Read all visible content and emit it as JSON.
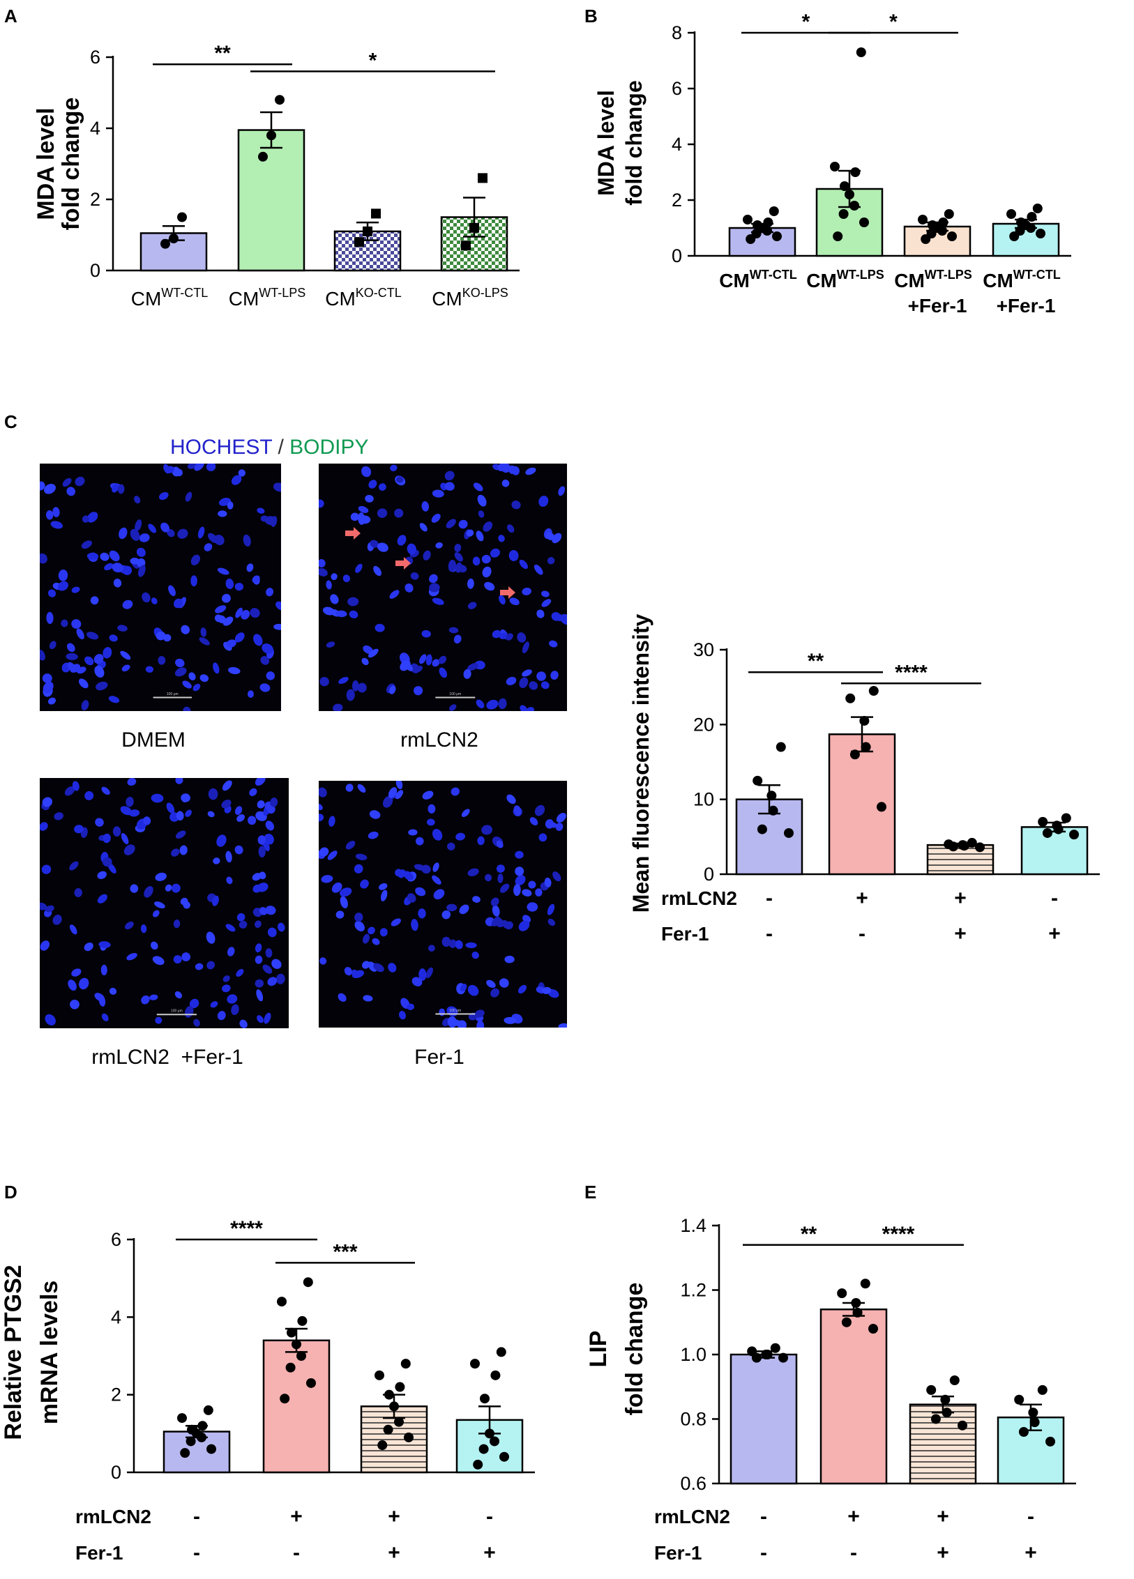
{
  "panels": {
    "A": "A",
    "B": "B",
    "C": "C",
    "D": "D",
    "E": "E"
  },
  "colors": {
    "lavender": "#b8b8f0",
    "green": "#b3eeb3",
    "pink": "#f6b1b1",
    "peach": "#f9e2cf",
    "cyan": "#b5f2f2",
    "white": "#ffffff",
    "hoechst": "#2222cc",
    "bodipy": "#0f9a52",
    "arrow": "#f26b6b"
  },
  "microscopy": {
    "title_blue": "HOCHEST",
    "title_sep": " / ",
    "title_green": "BODIPY",
    "scale_label": "100 μm",
    "captions": [
      "DMEM",
      "rmLCN2",
      "rmLCN2  +Fer-1",
      "Fer-1"
    ]
  },
  "chart_data": [
    {
      "id": "A",
      "type": "bar",
      "ylabel_lines": [
        "MDA  level",
        "fold change"
      ],
      "ylim": [
        0,
        6
      ],
      "yticks": [
        0,
        2,
        4,
        6
      ],
      "categories": [
        {
          "base": "CM",
          "sup": "WT-CTL"
        },
        {
          "base": "CM",
          "sup": "WT-LPS"
        },
        {
          "base": "CM",
          "sup": "KO-CTL"
        },
        {
          "base": "CM",
          "sup": "KO-LPS"
        }
      ],
      "values": [
        1.05,
        3.95,
        1.1,
        1.5
      ],
      "errors": [
        0.2,
        0.5,
        0.25,
        0.55
      ],
      "fills": [
        "lavender",
        "green",
        "check-lavender",
        "check-green"
      ],
      "points": [
        [
          1.5,
          0.9,
          0.75
        ],
        [
          4.8,
          3.8,
          3.2
        ],
        [
          1.6,
          1.1,
          0.8
        ],
        [
          2.6,
          1.2,
          0.7
        ]
      ],
      "markers": [
        "circle",
        "circle",
        "square",
        "square"
      ],
      "significance": [
        {
          "from": 0,
          "to": 1,
          "label": "**",
          "y": 5.8
        },
        {
          "from": 1,
          "to": 3,
          "label": "*",
          "y": 5.6
        }
      ]
    },
    {
      "id": "B",
      "type": "bar",
      "ylabel_lines": [
        "MDA  level",
        "fold change"
      ],
      "ylim": [
        0,
        8
      ],
      "yticks": [
        0,
        2,
        4,
        6,
        8
      ],
      "categories": [
        {
          "base": "CM",
          "sup": "WT-CTL",
          "line2": ""
        },
        {
          "base": "CM",
          "sup": "WT-LPS",
          "line2": ""
        },
        {
          "base": "CM",
          "sup": "WT-LPS",
          "line2": "+Fer-1"
        },
        {
          "base": "CM",
          "sup": "WT-CTL",
          "line2": "+Fer-1"
        }
      ],
      "values": [
        1.0,
        2.4,
        1.05,
        1.15
      ],
      "errors": [
        0.15,
        0.65,
        0.15,
        0.15
      ],
      "fills": [
        "lavender",
        "green",
        "peach",
        "cyan"
      ],
      "points": [
        [
          1.6,
          1.3,
          1.2,
          1.1,
          1.0,
          0.9,
          0.8,
          0.7,
          0.6
        ],
        [
          7.3,
          3.2,
          3.0,
          2.5,
          2.2,
          1.8,
          1.5,
          1.2,
          0.7
        ],
        [
          1.5,
          1.3,
          1.2,
          1.1,
          1.0,
          0.9,
          0.8,
          0.7,
          0.6
        ],
        [
          1.7,
          1.5,
          1.4,
          1.2,
          1.1,
          1.0,
          0.9,
          0.8,
          0.7
        ]
      ],
      "significance": [
        {
          "from": 0,
          "to": 1,
          "label": "*",
          "y": 8.0
        },
        {
          "from": 1,
          "to": 2,
          "label": "*",
          "y": 8.0
        }
      ]
    },
    {
      "id": "C",
      "type": "bar",
      "ylabel_lines": [
        "Mean fluorescence intensity"
      ],
      "ylim": [
        0,
        30
      ],
      "yticks": [
        0,
        10,
        20,
        30
      ],
      "row_labels": [
        "rmLCN2",
        "Fer-1"
      ],
      "treatments": [
        [
          "-",
          "+",
          "+",
          "-"
        ],
        [
          "-",
          "-",
          "+",
          "+"
        ]
      ],
      "values": [
        10.0,
        18.7,
        3.9,
        6.3
      ],
      "errors": [
        1.9,
        2.3,
        0.2,
        0.6
      ],
      "fills": [
        "lavender",
        "pink",
        "stripe",
        "cyan"
      ],
      "points": [
        [
          17.0,
          12.5,
          10.5,
          8.5,
          6.0,
          5.5
        ],
        [
          24.5,
          23.5,
          20.5,
          17.0,
          16.0,
          9.0
        ],
        [
          4.2,
          4.0,
          3.9,
          3.8,
          3.7,
          3.6
        ],
        [
          7.5,
          7.0,
          6.5,
          6.0,
          5.5,
          5.3
        ]
      ],
      "significance": [
        {
          "from": 0,
          "to": 1,
          "label": "**",
          "y": 27.0
        },
        {
          "from": 1,
          "to": 2,
          "label": "****",
          "y": 25.5
        }
      ]
    },
    {
      "id": "D",
      "type": "bar",
      "ylabel_lines": [
        "Relative PTGS2",
        "mRNA levels"
      ],
      "ylim": [
        0,
        6
      ],
      "yticks": [
        0,
        2,
        4,
        6
      ],
      "row_labels": [
        "rmLCN2",
        "Fer-1"
      ],
      "treatments": [
        [
          "-",
          "+",
          "+",
          "-"
        ],
        [
          "-",
          "-",
          "+",
          "+"
        ]
      ],
      "values": [
        1.05,
        3.4,
        1.7,
        1.35
      ],
      "errors": [
        0.15,
        0.3,
        0.3,
        0.35
      ],
      "fills": [
        "lavender",
        "pink",
        "stripe",
        "cyan"
      ],
      "points": [
        [
          1.6,
          1.4,
          1.2,
          1.1,
          1.0,
          0.9,
          0.8,
          0.6,
          0.5
        ],
        [
          4.9,
          4.4,
          3.9,
          3.6,
          3.3,
          3.0,
          2.7,
          2.3,
          1.9
        ],
        [
          2.8,
          2.5,
          2.2,
          2.0,
          1.7,
          1.3,
          1.1,
          0.9,
          0.7
        ],
        [
          3.1,
          2.8,
          2.5,
          1.9,
          1.0,
          0.8,
          0.6,
          0.4,
          0.2
        ]
      ],
      "significance": [
        {
          "from": 0,
          "to": 1,
          "label": "****",
          "y": 6.0
        },
        {
          "from": 1,
          "to": 2,
          "label": "***",
          "y": 5.4
        }
      ]
    },
    {
      "id": "E",
      "type": "bar",
      "ylabel_lines": [
        "LIP",
        "fold change"
      ],
      "ylim": [
        0.6,
        1.4
      ],
      "yticks": [
        0.6,
        0.8,
        1.0,
        1.2,
        1.4
      ],
      "ytick_labels": [
        "0.6",
        "0.8",
        "1.0",
        "1.2",
        "1.4"
      ],
      "row_labels": [
        "rmLCN2",
        "Fer-1"
      ],
      "treatments": [
        [
          "-",
          "+",
          "+",
          "-"
        ],
        [
          "-",
          "-",
          "+",
          "+"
        ]
      ],
      "values": [
        1.0,
        1.14,
        0.845,
        0.805
      ],
      "errors": [
        0.01,
        0.02,
        0.025,
        0.04
      ],
      "fills": [
        "lavender",
        "pink",
        "stripe",
        "cyan"
      ],
      "points": [
        [
          1.02,
          1.01,
          1.0,
          1.0,
          0.99,
          0.99
        ],
        [
          1.22,
          1.19,
          1.16,
          1.13,
          1.1,
          1.08
        ],
        [
          0.92,
          0.89,
          0.86,
          0.82,
          0.8,
          0.78
        ],
        [
          0.89,
          0.86,
          0.82,
          0.79,
          0.76,
          0.73
        ]
      ],
      "significance": [
        {
          "from": 0,
          "to": 1,
          "label": "**",
          "y": 1.34
        },
        {
          "from": 1,
          "to": 2,
          "label": "****",
          "y": 1.34
        }
      ]
    }
  ]
}
